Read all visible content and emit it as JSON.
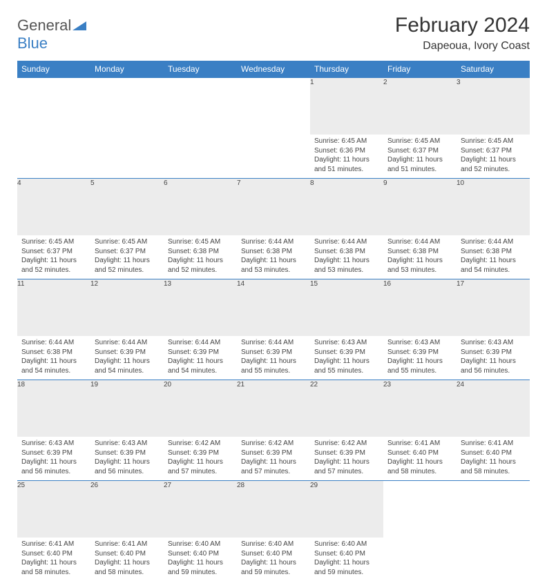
{
  "logo": {
    "part1": "General",
    "part2": "Blue"
  },
  "title": "February 2024",
  "location": "Dapeoua, Ivory Coast",
  "colors": {
    "header_bg": "#3a7fc4",
    "header_text": "#ffffff",
    "daynum_bg": "#ececec",
    "border": "#3a7fc4",
    "text": "#444444"
  },
  "weekdays": [
    "Sunday",
    "Monday",
    "Tuesday",
    "Wednesday",
    "Thursday",
    "Friday",
    "Saturday"
  ],
  "weeks": [
    [
      null,
      null,
      null,
      null,
      {
        "n": "1",
        "sr": "6:45 AM",
        "ss": "6:36 PM",
        "dl": "11 hours and 51 minutes."
      },
      {
        "n": "2",
        "sr": "6:45 AM",
        "ss": "6:37 PM",
        "dl": "11 hours and 51 minutes."
      },
      {
        "n": "3",
        "sr": "6:45 AM",
        "ss": "6:37 PM",
        "dl": "11 hours and 52 minutes."
      }
    ],
    [
      {
        "n": "4",
        "sr": "6:45 AM",
        "ss": "6:37 PM",
        "dl": "11 hours and 52 minutes."
      },
      {
        "n": "5",
        "sr": "6:45 AM",
        "ss": "6:37 PM",
        "dl": "11 hours and 52 minutes."
      },
      {
        "n": "6",
        "sr": "6:45 AM",
        "ss": "6:38 PM",
        "dl": "11 hours and 52 minutes."
      },
      {
        "n": "7",
        "sr": "6:44 AM",
        "ss": "6:38 PM",
        "dl": "11 hours and 53 minutes."
      },
      {
        "n": "8",
        "sr": "6:44 AM",
        "ss": "6:38 PM",
        "dl": "11 hours and 53 minutes."
      },
      {
        "n": "9",
        "sr": "6:44 AM",
        "ss": "6:38 PM",
        "dl": "11 hours and 53 minutes."
      },
      {
        "n": "10",
        "sr": "6:44 AM",
        "ss": "6:38 PM",
        "dl": "11 hours and 54 minutes."
      }
    ],
    [
      {
        "n": "11",
        "sr": "6:44 AM",
        "ss": "6:38 PM",
        "dl": "11 hours and 54 minutes."
      },
      {
        "n": "12",
        "sr": "6:44 AM",
        "ss": "6:39 PM",
        "dl": "11 hours and 54 minutes."
      },
      {
        "n": "13",
        "sr": "6:44 AM",
        "ss": "6:39 PM",
        "dl": "11 hours and 54 minutes."
      },
      {
        "n": "14",
        "sr": "6:44 AM",
        "ss": "6:39 PM",
        "dl": "11 hours and 55 minutes."
      },
      {
        "n": "15",
        "sr": "6:43 AM",
        "ss": "6:39 PM",
        "dl": "11 hours and 55 minutes."
      },
      {
        "n": "16",
        "sr": "6:43 AM",
        "ss": "6:39 PM",
        "dl": "11 hours and 55 minutes."
      },
      {
        "n": "17",
        "sr": "6:43 AM",
        "ss": "6:39 PM",
        "dl": "11 hours and 56 minutes."
      }
    ],
    [
      {
        "n": "18",
        "sr": "6:43 AM",
        "ss": "6:39 PM",
        "dl": "11 hours and 56 minutes."
      },
      {
        "n": "19",
        "sr": "6:43 AM",
        "ss": "6:39 PM",
        "dl": "11 hours and 56 minutes."
      },
      {
        "n": "20",
        "sr": "6:42 AM",
        "ss": "6:39 PM",
        "dl": "11 hours and 57 minutes."
      },
      {
        "n": "21",
        "sr": "6:42 AM",
        "ss": "6:39 PM",
        "dl": "11 hours and 57 minutes."
      },
      {
        "n": "22",
        "sr": "6:42 AM",
        "ss": "6:39 PM",
        "dl": "11 hours and 57 minutes."
      },
      {
        "n": "23",
        "sr": "6:41 AM",
        "ss": "6:40 PM",
        "dl": "11 hours and 58 minutes."
      },
      {
        "n": "24",
        "sr": "6:41 AM",
        "ss": "6:40 PM",
        "dl": "11 hours and 58 minutes."
      }
    ],
    [
      {
        "n": "25",
        "sr": "6:41 AM",
        "ss": "6:40 PM",
        "dl": "11 hours and 58 minutes."
      },
      {
        "n": "26",
        "sr": "6:41 AM",
        "ss": "6:40 PM",
        "dl": "11 hours and 58 minutes."
      },
      {
        "n": "27",
        "sr": "6:40 AM",
        "ss": "6:40 PM",
        "dl": "11 hours and 59 minutes."
      },
      {
        "n": "28",
        "sr": "6:40 AM",
        "ss": "6:40 PM",
        "dl": "11 hours and 59 minutes."
      },
      {
        "n": "29",
        "sr": "6:40 AM",
        "ss": "6:40 PM",
        "dl": "11 hours and 59 minutes."
      },
      null,
      null
    ]
  ],
  "labels": {
    "sunrise": "Sunrise: ",
    "sunset": "Sunset: ",
    "daylight": "Daylight: "
  }
}
